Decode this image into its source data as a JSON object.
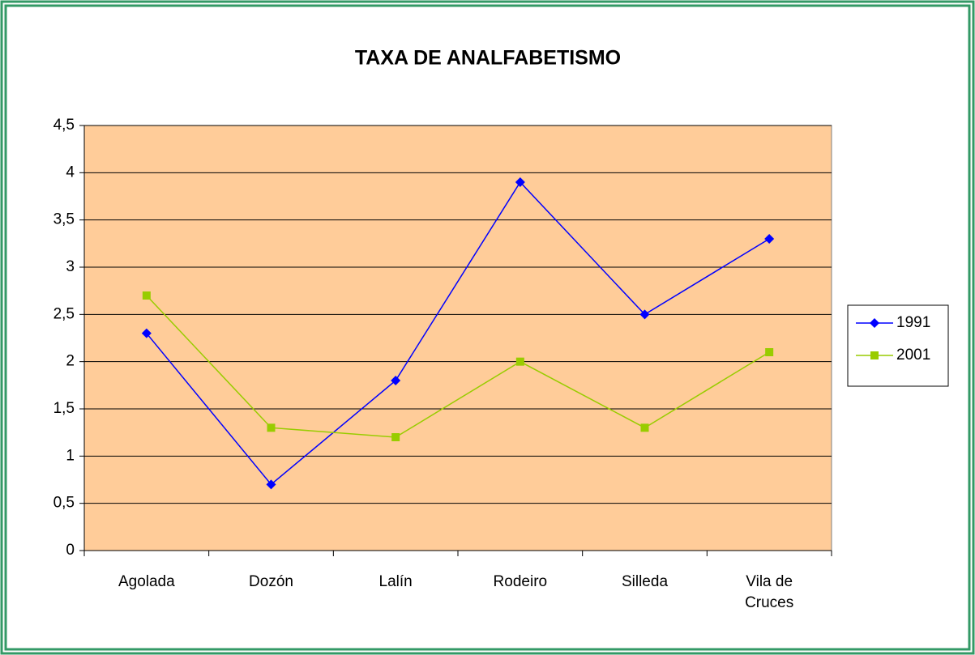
{
  "chart_data": {
    "type": "line",
    "title": "TAXA DE ANALFABETISMO",
    "categories": [
      "Agolada",
      "Dozón",
      "Lalín",
      "Rodeiro",
      "Silleda",
      "Vila de Cruces"
    ],
    "series": [
      {
        "name": "1991",
        "color": "#0000ff",
        "marker": "diamond",
        "values": [
          2.3,
          0.7,
          1.8,
          3.9,
          2.5,
          3.3
        ]
      },
      {
        "name": "2001",
        "color": "#99cc00",
        "marker": "square",
        "values": [
          2.7,
          1.3,
          1.2,
          2.0,
          1.3,
          2.1
        ]
      }
    ],
    "ylim": [
      0,
      4.5
    ],
    "yticks": [
      0,
      {
        "value": 0.5,
        "label": "0,5"
      },
      1,
      {
        "value": 1.5,
        "label": "1,5"
      },
      2,
      {
        "value": 2.5,
        "label": "2,5"
      },
      3,
      {
        "value": 3.5,
        "label": "3,5"
      },
      4,
      {
        "value": 4.5,
        "label": "4,5"
      }
    ],
    "grid": true,
    "legend": "right",
    "plot_background": "#ffcc99"
  }
}
